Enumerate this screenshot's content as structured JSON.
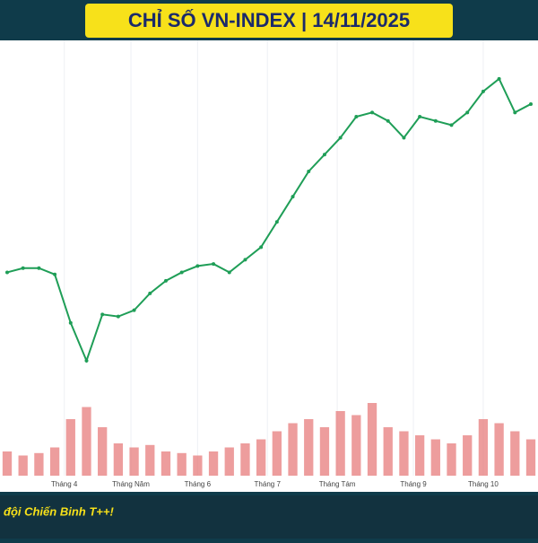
{
  "chart_data": {
    "type": "line",
    "title": "CHỈ SỐ VN-INDEX | 14/11/2025",
    "footer": "đội Chiến Binh T++!",
    "x": [
      0,
      1,
      2,
      3,
      4,
      5,
      6,
      7,
      8,
      9,
      10,
      11,
      12,
      13,
      14,
      15,
      16,
      17,
      18,
      19,
      20,
      21,
      22,
      23,
      24,
      25,
      26,
      27,
      28,
      29,
      30,
      31,
      32,
      33
    ],
    "values": [
      1320,
      1330,
      1330,
      1315,
      1200,
      1110,
      1220,
      1215,
      1230,
      1270,
      1300,
      1320,
      1335,
      1340,
      1320,
      1350,
      1380,
      1440,
      1500,
      1560,
      1600,
      1640,
      1690,
      1700,
      1680,
      1640,
      1690,
      1680,
      1670,
      1700,
      1750,
      1780,
      1700,
      1720
    ],
    "color": "#1f9e57",
    "volume": [
      30,
      25,
      28,
      35,
      70,
      85,
      60,
      40,
      35,
      38,
      30,
      28,
      25,
      30,
      35,
      40,
      45,
      55,
      65,
      70,
      60,
      80,
      75,
      90,
      60,
      55,
      50,
      45,
      40,
      50,
      70,
      65,
      55,
      45
    ],
    "volume_color": "#e57373",
    "xlim": [
      0,
      33
    ],
    "xticks": [
      {
        "value": 3.6,
        "label": "Tháng 4"
      },
      {
        "value": 7.8,
        "label": "Tháng Năm"
      },
      {
        "value": 12,
        "label": "Tháng 6"
      },
      {
        "value": 16.4,
        "label": "Tháng 7"
      },
      {
        "value": 20.8,
        "label": "Tháng Tám"
      },
      {
        "value": 25.6,
        "label": "Tháng 9"
      },
      {
        "value": 30,
        "label": "Tháng 10"
      }
    ],
    "ylim": [
      1050,
      1850
    ],
    "vlim": [
      0,
      100
    ],
    "grid": true
  }
}
